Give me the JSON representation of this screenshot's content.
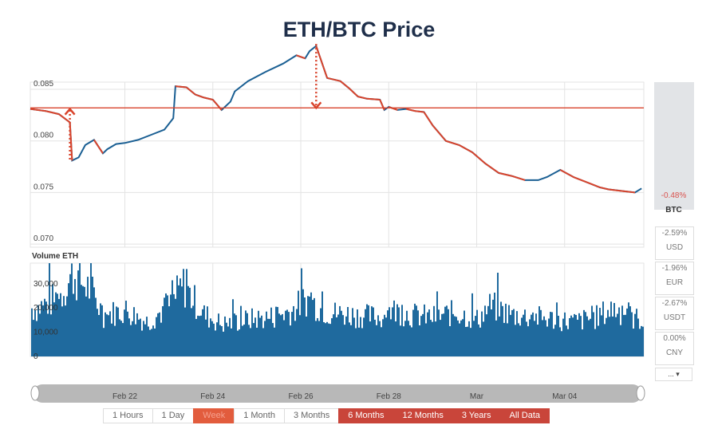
{
  "title": "ETH/BTC Price",
  "chart_data": {
    "type": "line",
    "price_axis": {
      "ticks": [
        0.085,
        0.08,
        0.075,
        0.07
      ],
      "tick_labels": [
        "0.085",
        "0.080",
        "0.075",
        "0.070"
      ],
      "ylim": [
        0.0697,
        0.0857
      ]
    },
    "volume_axis": {
      "label": "Volume ETH",
      "ticks": [
        30000,
        20000,
        10000,
        0
      ],
      "tick_labels": [
        "30,000",
        "20,000",
        "10,000",
        "0"
      ],
      "ylim": [
        0,
        38500
      ]
    },
    "x_ticks": [
      "Feb 22",
      "Feb 24",
      "Feb 26",
      "Feb 28",
      "Mar",
      "Mar 04"
    ],
    "x_tick_days": [
      2,
      4,
      6,
      8,
      10,
      12
    ],
    "x_range_days": [
      -0.15,
      13.8
    ],
    "reference_line": 0.0832,
    "series": [
      {
        "kind": "price",
        "x": [
          -0.15,
          0.2,
          0.5,
          0.75,
          0.8,
          0.95,
          1.1,
          1.3,
          1.5,
          1.6,
          1.8,
          2.0,
          2.3,
          2.6,
          2.9,
          3.1,
          3.15,
          3.4,
          3.6,
          3.8,
          4.0,
          4.2,
          4.4,
          4.5,
          4.8,
          5.2,
          5.6,
          5.9,
          6.1,
          6.2,
          6.35,
          6.6,
          6.9,
          7.1,
          7.3,
          7.5,
          7.8,
          7.9,
          8.0,
          8.2,
          8.4,
          8.6,
          8.8,
          9.0,
          9.3,
          9.6,
          9.9,
          10.2,
          10.5,
          10.8,
          11.1,
          11.4,
          11.6,
          11.9,
          12.2,
          12.5,
          12.8,
          13.0,
          13.2,
          13.4,
          13.6,
          13.75
        ],
        "y": [
          0.0831,
          0.0829,
          0.0826,
          0.0818,
          0.0781,
          0.0784,
          0.0796,
          0.0801,
          0.0788,
          0.0792,
          0.0797,
          0.0798,
          0.0801,
          0.0806,
          0.0811,
          0.0822,
          0.0853,
          0.0852,
          0.0845,
          0.0842,
          0.084,
          0.083,
          0.0838,
          0.0848,
          0.0858,
          0.0867,
          0.0875,
          0.0883,
          0.088,
          0.0887,
          0.0892,
          0.0861,
          0.0858,
          0.0851,
          0.0843,
          0.0841,
          0.084,
          0.083,
          0.0833,
          0.083,
          0.0831,
          0.0829,
          0.0828,
          0.0815,
          0.08,
          0.0796,
          0.0789,
          0.0778,
          0.0769,
          0.0766,
          0.0762,
          0.0762,
          0.0765,
          0.0772,
          0.0765,
          0.076,
          0.0755,
          0.0753,
          0.0752,
          0.0751,
          0.075,
          0.0754
        ]
      },
      {
        "kind": "volume",
        "x": [
          0,
          0.5,
          0.8,
          1.2,
          1.5,
          2.0,
          2.5,
          3.0,
          3.3,
          3.8,
          4.2,
          4.8,
          5.3,
          5.8,
          6.1,
          6.6,
          7.2,
          7.8,
          8.1,
          8.5,
          9.0,
          9.5,
          10.0,
          10.3,
          10.8,
          11.3,
          11.8,
          12.2,
          12.7,
          13.1,
          13.5,
          13.7
        ],
        "y": [
          21000,
          26000,
          35500,
          29000,
          18000,
          20000,
          15000,
          22000,
          31000,
          18000,
          14000,
          16000,
          17000,
          20000,
          25000,
          19000,
          18000,
          17000,
          20000,
          18000,
          17000,
          19000,
          16000,
          22000,
          18000,
          17000,
          16000,
          15000,
          17000,
          21000,
          17000,
          16000
        ]
      }
    ],
    "annotations": [
      {
        "x": 0.75,
        "y_from": 0.0782,
        "y_to": 0.0831,
        "marker": "up-arrow"
      },
      {
        "x": 6.35,
        "y_from": 0.0894,
        "y_to": 0.0832,
        "marker": "down-arrow"
      }
    ]
  },
  "range_scrollbar": {
    "labels": [
      "Feb 22",
      "Feb 24",
      "Feb 26",
      "Feb 28",
      "Mar",
      "Mar 04"
    ]
  },
  "currencies": [
    {
      "pct": "-0.48%",
      "name": "BTC",
      "selected": true
    },
    {
      "pct": "-2.59%",
      "name": "USD"
    },
    {
      "pct": "-1.96%",
      "name": "EUR"
    },
    {
      "pct": "-2.67%",
      "name": "USDT"
    },
    {
      "pct": "0.00%",
      "name": "CNY"
    }
  ],
  "more_label": "...",
  "range_buttons": [
    {
      "label": "1 Hours",
      "style": "plain"
    },
    {
      "label": "1 Day",
      "style": "plain"
    },
    {
      "label": "Week",
      "style": "active"
    },
    {
      "label": "1 Month",
      "style": "plain"
    },
    {
      "label": "3 Months",
      "style": "plain"
    },
    {
      "label": "6 Months",
      "style": "red"
    },
    {
      "label": "12 Months",
      "style": "red"
    },
    {
      "label": "3 Years",
      "style": "red"
    },
    {
      "label": "All Data",
      "style": "red"
    }
  ],
  "colors": {
    "line": "#1a5f93",
    "down": "#d9442c",
    "volume": "#1f6a9e",
    "reference": "#d9442c",
    "grid": "#e3e3e3",
    "title": "#1f2f4a"
  }
}
